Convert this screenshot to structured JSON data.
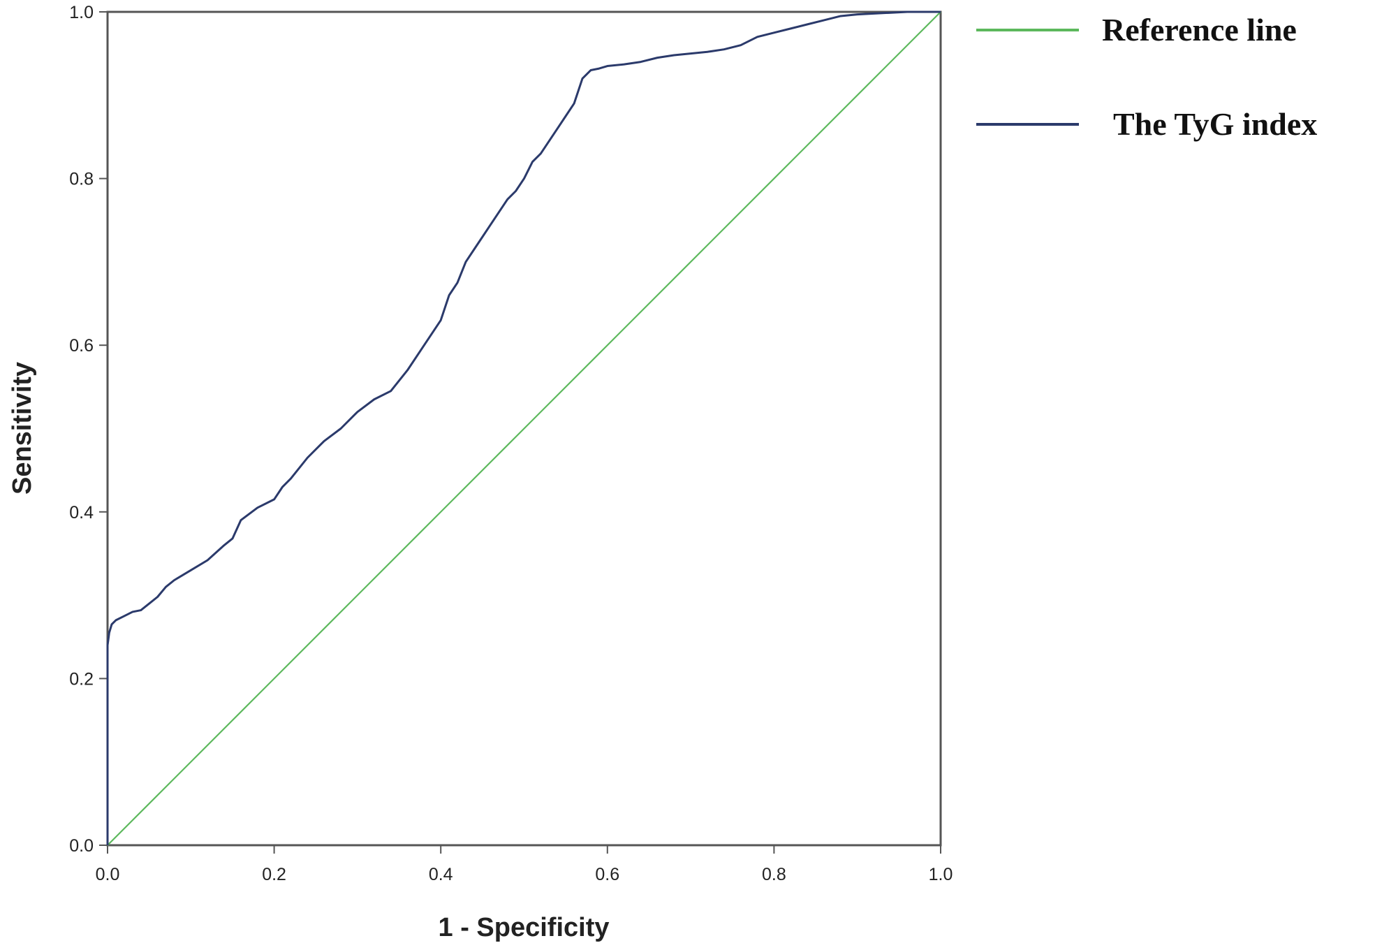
{
  "chart_data": {
    "type": "line",
    "title": "",
    "xlabel": "1 - Specificity",
    "ylabel": "Sensitivity",
    "xlim": [
      0,
      1
    ],
    "ylim": [
      0,
      1
    ],
    "xticks": [
      "0.0",
      "0.2",
      "0.4",
      "0.6",
      "0.8",
      "1.0"
    ],
    "yticks": [
      "0.0",
      "0.2",
      "0.4",
      "0.6",
      "0.8",
      "1.0"
    ],
    "grid": false,
    "legend_position": "right",
    "series": [
      {
        "name": "Reference line",
        "color": "#5cb85c",
        "x": [
          0,
          1
        ],
        "y": [
          0,
          1
        ]
      },
      {
        "name": "The TyG index",
        "color": "#2b3a6b",
        "x": [
          0,
          0.0,
          0.002,
          0.005,
          0.01,
          0.02,
          0.03,
          0.04,
          0.05,
          0.06,
          0.07,
          0.08,
          0.1,
          0.12,
          0.14,
          0.15,
          0.16,
          0.18,
          0.2,
          0.21,
          0.22,
          0.24,
          0.26,
          0.28,
          0.3,
          0.32,
          0.34,
          0.36,
          0.38,
          0.4,
          0.41,
          0.42,
          0.43,
          0.44,
          0.45,
          0.46,
          0.47,
          0.48,
          0.49,
          0.5,
          0.51,
          0.52,
          0.53,
          0.54,
          0.55,
          0.56,
          0.57,
          0.58,
          0.59,
          0.6,
          0.62,
          0.64,
          0.66,
          0.68,
          0.7,
          0.72,
          0.74,
          0.76,
          0.78,
          0.8,
          0.82,
          0.84,
          0.86,
          0.88,
          0.9,
          0.92,
          0.94,
          0.96,
          0.98,
          1.0
        ],
        "y": [
          0,
          0.24,
          0.255,
          0.265,
          0.27,
          0.275,
          0.28,
          0.282,
          0.29,
          0.298,
          0.31,
          0.318,
          0.33,
          0.342,
          0.36,
          0.368,
          0.39,
          0.405,
          0.415,
          0.43,
          0.44,
          0.465,
          0.485,
          0.5,
          0.52,
          0.535,
          0.545,
          0.57,
          0.6,
          0.63,
          0.66,
          0.675,
          0.7,
          0.715,
          0.73,
          0.745,
          0.76,
          0.775,
          0.785,
          0.8,
          0.82,
          0.83,
          0.845,
          0.86,
          0.875,
          0.89,
          0.92,
          0.93,
          0.932,
          0.935,
          0.937,
          0.94,
          0.945,
          0.948,
          0.95,
          0.952,
          0.955,
          0.96,
          0.97,
          0.975,
          0.98,
          0.985,
          0.99,
          0.995,
          0.997,
          0.998,
          0.999,
          1.0,
          1.0,
          1.0
        ]
      }
    ]
  }
}
